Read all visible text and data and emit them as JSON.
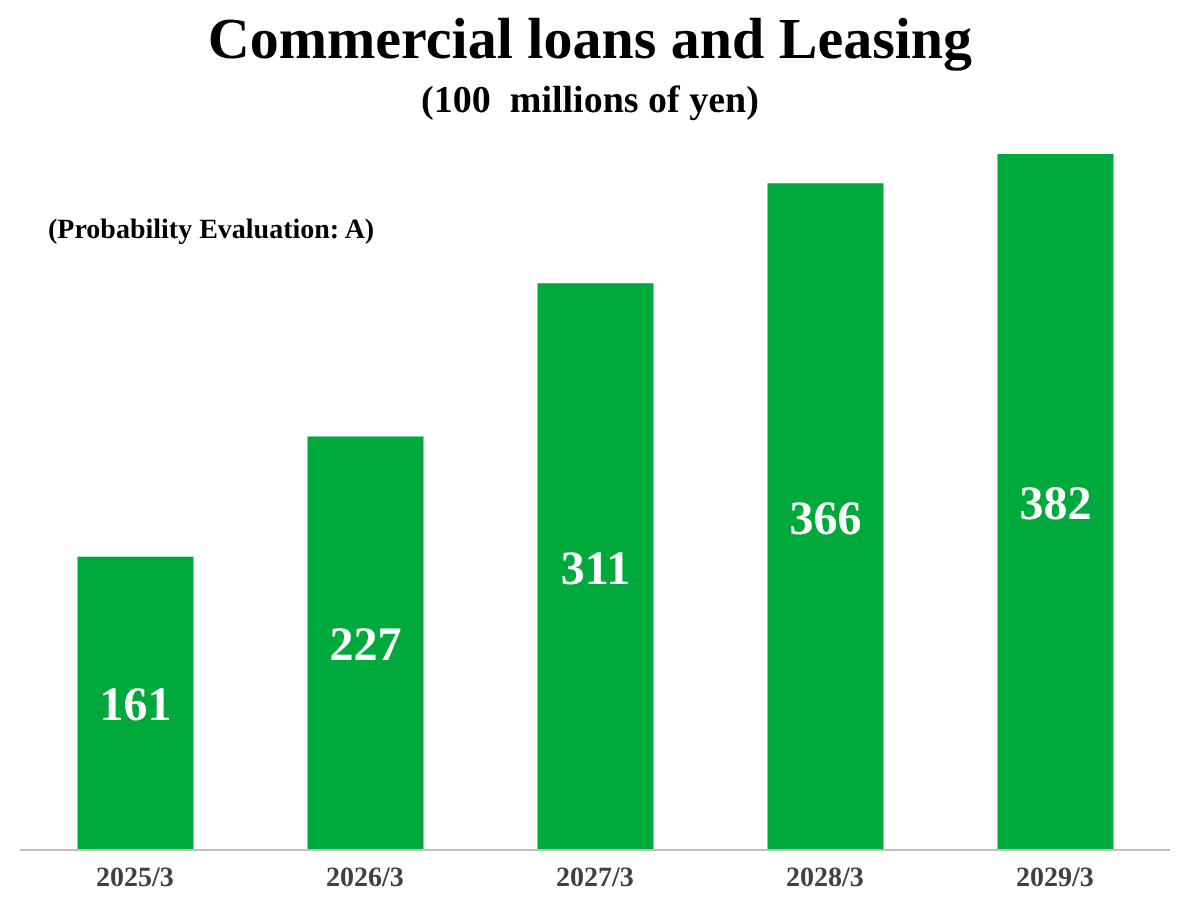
{
  "chart_data": {
    "type": "bar",
    "title": "Commercial loans and Leasing",
    "subtitle": "(100  millions of yen)",
    "annotations": [
      "(Probability Evaluation: A)"
    ],
    "categories": [
      "2025/3",
      "2026/3",
      "2027/3",
      "2028/3",
      "2029/3"
    ],
    "values": [
      161,
      227,
      311,
      366,
      382
    ],
    "color": "#00a93c",
    "data_labels": true,
    "legend": false,
    "grid": false
  }
}
